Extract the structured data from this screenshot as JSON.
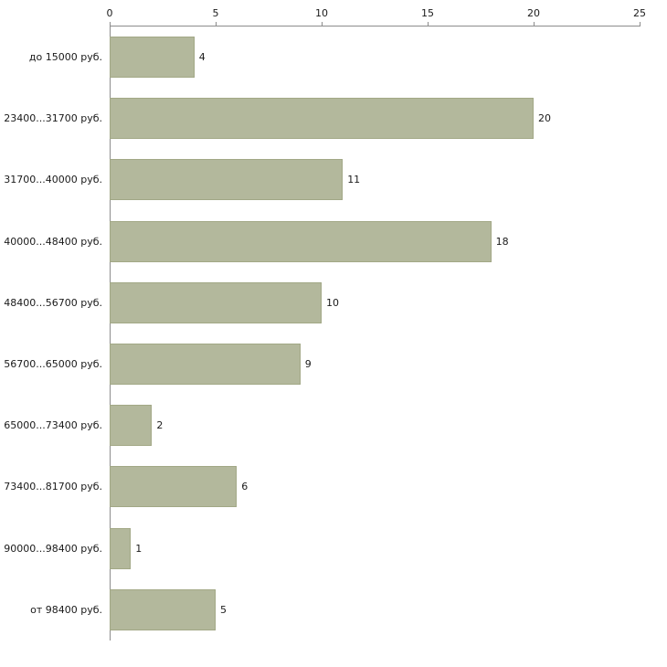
{
  "chart_data": {
    "type": "bar",
    "orientation": "horizontal",
    "title": "",
    "xlabel": "",
    "ylabel": "",
    "categories": [
      "до 15000 руб.",
      "23400...31700 руб.",
      "31700...40000 руб.",
      "40000...48400 руб.",
      "48400...56700 руб.",
      "56700...65000 руб.",
      "65000...73400 руб.",
      "73400...81700 руб.",
      "90000...98400 руб.",
      "от 98400 руб."
    ],
    "values": [
      4,
      20,
      11,
      18,
      10,
      9,
      2,
      6,
      1,
      5
    ],
    "xlim": [
      0,
      25
    ],
    "x_ticks": [
      "0",
      "5",
      "10",
      "15",
      "20",
      "25"
    ],
    "axis_position": "top",
    "grid": false,
    "legend": false
  },
  "colors": {
    "bar_fill": "#b3b89c",
    "bar_border": "#a2a886",
    "axis": "#8c8c8c",
    "text": "#1a1a1a",
    "background": "#ffffff"
  }
}
